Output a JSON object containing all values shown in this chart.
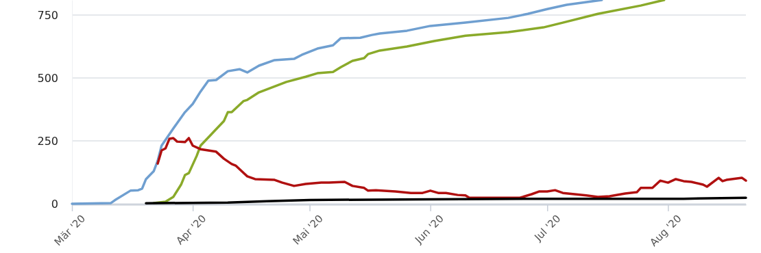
{
  "chart_data": {
    "type": "line",
    "ylim": [
      0,
      810
    ],
    "yticks": [
      0,
      250,
      500,
      750
    ],
    "xlim": [
      "2020-03-01",
      "2020-08-21"
    ],
    "xticks": [
      {
        "value": "2020-03-01",
        "label": "Mär '20"
      },
      {
        "value": "2020-04-01",
        "label": "Apr '20"
      },
      {
        "value": "2020-05-01",
        "label": "Mai '20"
      },
      {
        "value": "2020-06-01",
        "label": "Jun '20"
      },
      {
        "value": "2020-07-01",
        "label": "Jul '20"
      },
      {
        "value": "2020-08-01",
        "label": "Aug '20"
      }
    ],
    "grid": "y",
    "marker": "none",
    "line_style": "solid",
    "series": [
      {
        "color": "#6f9fd0",
        "x": [
          "2020-03-01",
          "2020-03-11",
          "2020-03-12",
          "2020-03-16",
          "2020-03-18",
          "2020-03-19",
          "2020-03-20",
          "2020-03-22",
          "2020-03-23",
          "2020-03-24",
          "2020-03-27",
          "2020-03-28",
          "2020-03-30",
          "2020-04-01",
          "2020-04-03",
          "2020-04-05",
          "2020-04-07",
          "2020-04-10",
          "2020-04-13",
          "2020-04-15",
          "2020-04-18",
          "2020-04-22",
          "2020-04-27",
          "2020-04-29",
          "2020-05-03",
          "2020-05-07",
          "2020-05-09",
          "2020-05-14",
          "2020-05-17",
          "2020-05-19",
          "2020-05-26",
          "2020-06-01",
          "2020-06-10",
          "2020-06-21",
          "2020-06-26",
          "2020-07-01",
          "2020-07-06",
          "2020-07-15"
        ],
        "values": [
          0,
          3,
          14,
          52,
          54,
          60,
          98,
          130,
          171,
          231,
          299,
          321,
          364,
          397,
          446,
          489,
          492,
          527,
          535,
          522,
          549,
          571,
          576,
          592,
          617,
          630,
          658,
          660,
          671,
          677,
          688,
          707,
          720,
          739,
          755,
          774,
          791,
          810
        ]
      },
      {
        "color": "#8aaa2a",
        "x": [
          "2020-03-22",
          "2020-03-25",
          "2020-03-27",
          "2020-03-29",
          "2020-03-30",
          "2020-03-31",
          "2020-04-02",
          "2020-04-03",
          "2020-04-06",
          "2020-04-09",
          "2020-04-10",
          "2020-04-11",
          "2020-04-14",
          "2020-04-15",
          "2020-04-18",
          "2020-04-25",
          "2020-04-30",
          "2020-05-03",
          "2020-05-07",
          "2020-05-09",
          "2020-05-12",
          "2020-05-15",
          "2020-05-16",
          "2020-05-19",
          "2020-05-26",
          "2020-06-02",
          "2020-06-10",
          "2020-06-21",
          "2020-06-30",
          "2020-07-05",
          "2020-07-14",
          "2020-07-25",
          "2020-07-31"
        ],
        "values": [
          3,
          8,
          27,
          76,
          114,
          122,
          190,
          231,
          280,
          329,
          364,
          364,
          408,
          413,
          443,
          484,
          505,
          519,
          524,
          543,
          568,
          579,
          595,
          609,
          625,
          647,
          668,
          682,
          701,
          720,
          755,
          788,
          810
        ]
      },
      {
        "color": "#b01010",
        "x": [
          "2020-03-23",
          "2020-03-24",
          "2020-03-25",
          "2020-03-26",
          "2020-03-27",
          "2020-03-28",
          "2020-03-30",
          "2020-03-31",
          "2020-04-01",
          "2020-04-03",
          "2020-04-07",
          "2020-04-09",
          "2020-04-11",
          "2020-04-12",
          "2020-04-15",
          "2020-04-17",
          "2020-04-22",
          "2020-04-24",
          "2020-04-27",
          "2020-04-30",
          "2020-05-04",
          "2020-05-06",
          "2020-05-10",
          "2020-05-12",
          "2020-05-15",
          "2020-05-16",
          "2020-05-18",
          "2020-05-23",
          "2020-05-27",
          "2020-05-30",
          "2020-06-01",
          "2020-06-03",
          "2020-06-05",
          "2020-06-08",
          "2020-06-10",
          "2020-06-11",
          "2020-06-17",
          "2020-06-24",
          "2020-06-27",
          "2020-06-29",
          "2020-07-01",
          "2020-07-03",
          "2020-07-05",
          "2020-07-08",
          "2020-07-11",
          "2020-07-14",
          "2020-07-17",
          "2020-07-20",
          "2020-07-21",
          "2020-07-24",
          "2020-07-25",
          "2020-07-28",
          "2020-07-30",
          "2020-08-01",
          "2020-08-03",
          "2020-08-05",
          "2020-08-07",
          "2020-08-10",
          "2020-08-11",
          "2020-08-14",
          "2020-08-15",
          "2020-08-16",
          "2020-08-20",
          "2020-08-21"
        ],
        "values": [
          160,
          212,
          220,
          258,
          261,
          247,
          245,
          261,
          231,
          217,
          207,
          179,
          158,
          152,
          109,
          98,
          95,
          84,
          71,
          79,
          84,
          84,
          87,
          71,
          63,
          52,
          54,
          49,
          43,
          43,
          52,
          43,
          43,
          35,
          33,
          24,
          24,
          24,
          38,
          49,
          49,
          54,
          43,
          38,
          33,
          27,
          30,
          38,
          41,
          46,
          63,
          63,
          92,
          84,
          98,
          90,
          87,
          76,
          68,
          103,
          90,
          95,
          103,
          92
        ]
      },
      {
        "color": "#000000",
        "x": [
          "2020-03-20",
          "2020-04-10",
          "2020-04-20",
          "2020-05-01",
          "2020-06-01",
          "2020-07-01",
          "2020-08-05",
          "2020-08-21"
        ],
        "values": [
          2,
          5,
          10,
          15,
          18,
          20,
          20,
          24
        ]
      }
    ]
  }
}
